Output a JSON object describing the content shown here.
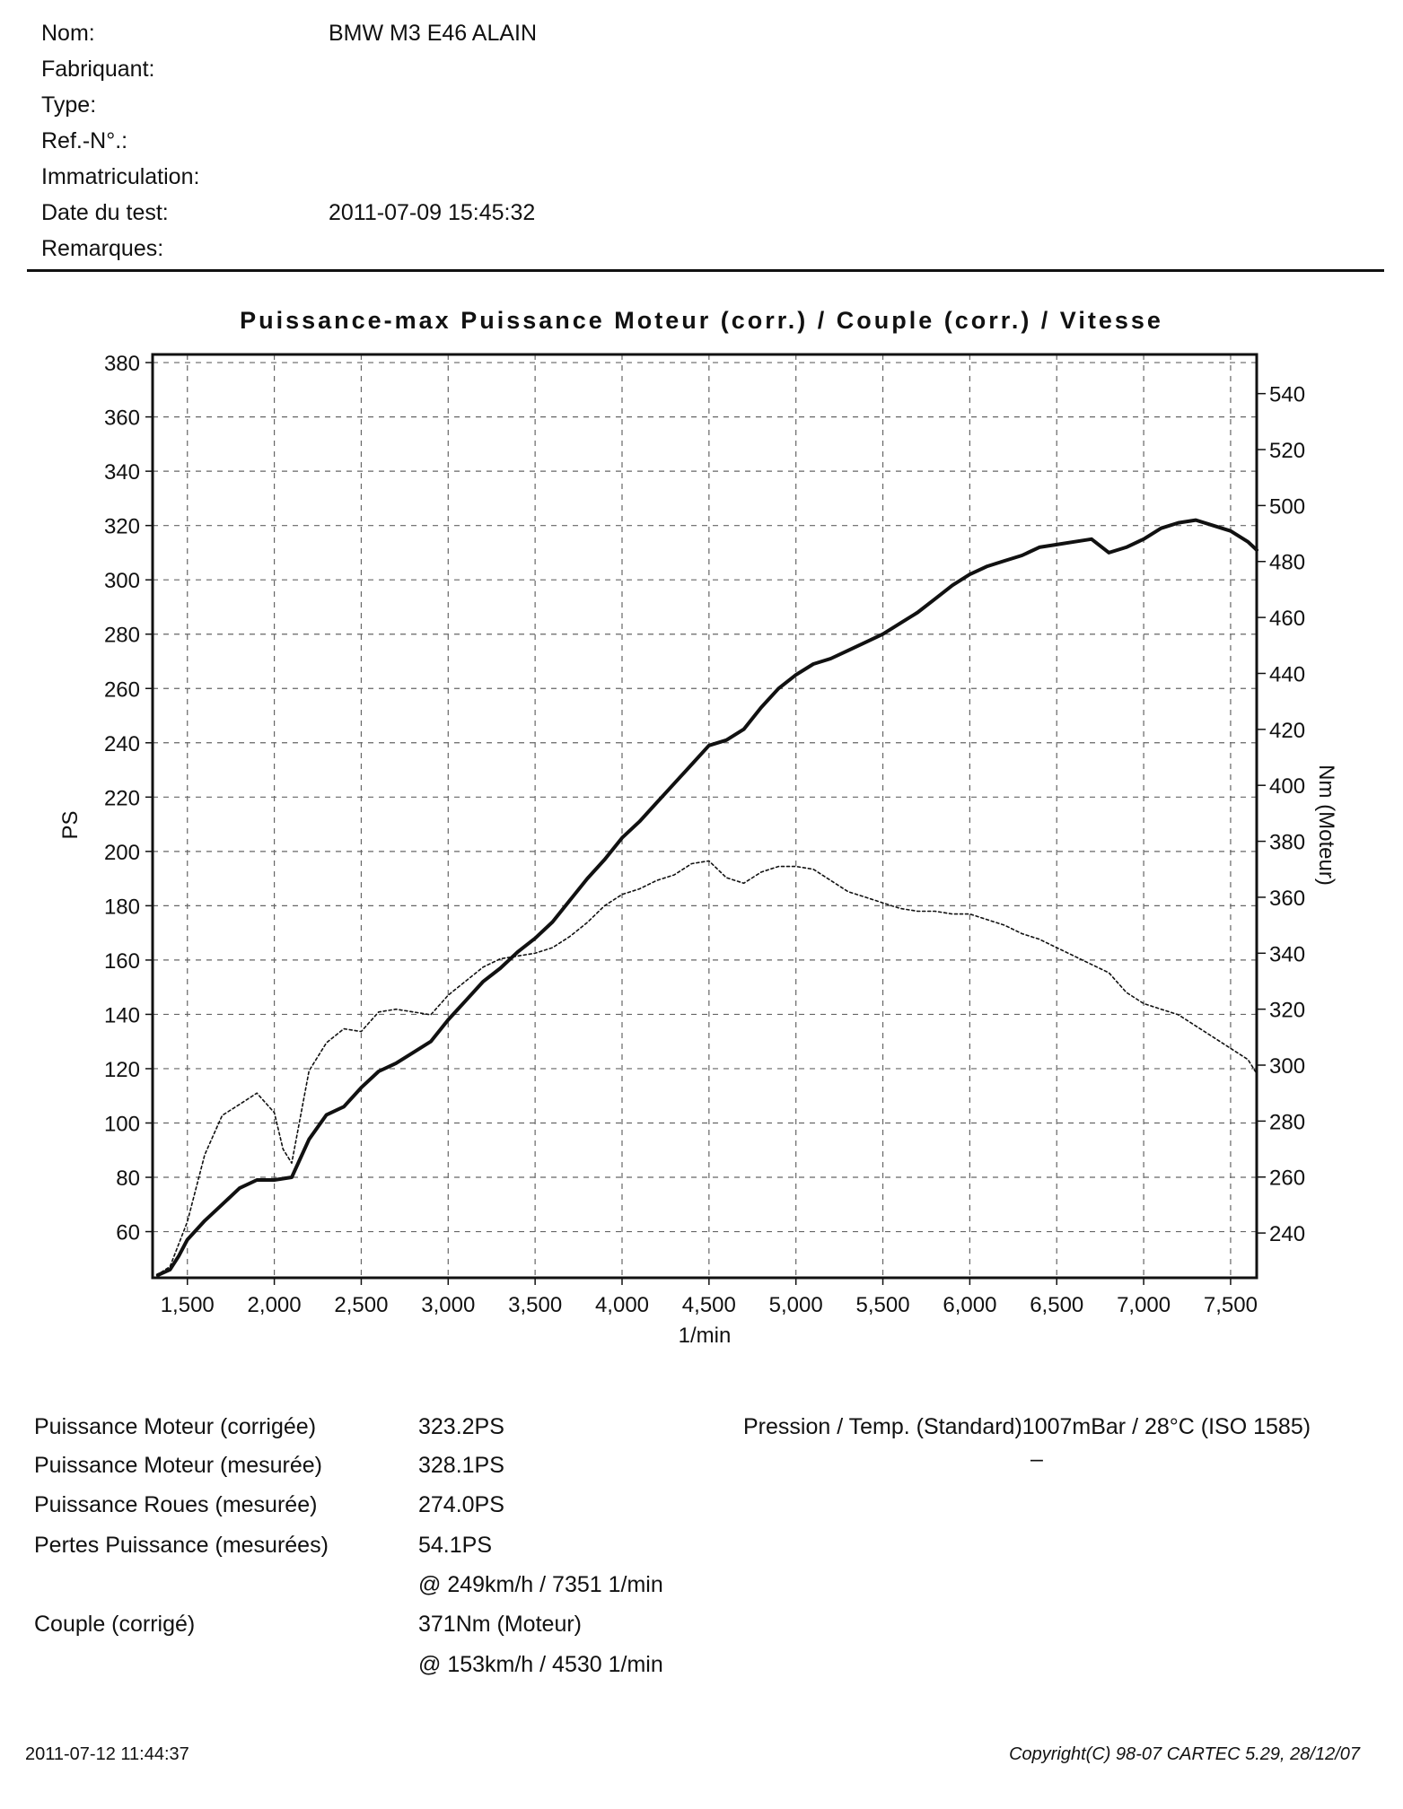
{
  "header": {
    "fields": [
      {
        "label": "Nom:",
        "value": "BMW M3 E46  ALAIN"
      },
      {
        "label": "Fabriquant:",
        "value": ""
      },
      {
        "label": "Type:",
        "value": ""
      },
      {
        "label": "Ref.-N°.:",
        "value": ""
      },
      {
        "label": "Immatriculation:",
        "value": ""
      },
      {
        "label": "Date du test:",
        "value": "2011-07-09 15:45:32"
      },
      {
        "label": "Remarques:",
        "value": ""
      }
    ]
  },
  "chart_data": {
    "type": "line",
    "title": "Puissance-max Puissance Moteur (corr.) / Couple (corr.) / Vitesse",
    "xlabel": "1/min",
    "ylabel_left": "PS",
    "ylabel_right": "Nm (Moteur)",
    "xlim": [
      1300,
      7650
    ],
    "ylim_left": [
      43,
      383
    ],
    "ylim_right": [
      224,
      554
    ],
    "x_ticks": [
      "1,500",
      "2,000",
      "2,500",
      "3,000",
      "3,500",
      "4,000",
      "4,500",
      "5,000",
      "5,500",
      "6,000",
      "6,500",
      "7,000",
      "7,500"
    ],
    "x_tick_values": [
      1500,
      2000,
      2500,
      3000,
      3500,
      4000,
      4500,
      5000,
      5500,
      6000,
      6500,
      7000,
      7500
    ],
    "y_left_ticks": [
      60,
      80,
      100,
      120,
      140,
      160,
      180,
      200,
      220,
      240,
      260,
      280,
      300,
      320,
      340,
      360,
      380
    ],
    "y_right_ticks": [
      240,
      260,
      280,
      300,
      320,
      340,
      360,
      380,
      400,
      420,
      440,
      460,
      480,
      500,
      520,
      540
    ],
    "grid": true,
    "series": [
      {
        "axis": "left",
        "style": "solid",
        "x": [
          1330,
          1400,
          1450,
          1500,
          1600,
          1700,
          1800,
          1900,
          2000,
          2100,
          2200,
          2300,
          2400,
          2500,
          2600,
          2700,
          2800,
          2900,
          3000,
          3100,
          3200,
          3300,
          3400,
          3500,
          3600,
          3700,
          3800,
          3900,
          4000,
          4100,
          4200,
          4300,
          4400,
          4500,
          4600,
          4700,
          4800,
          4900,
          5000,
          5100,
          5200,
          5300,
          5400,
          5500,
          5600,
          5700,
          5800,
          5900,
          6000,
          6100,
          6200,
          6300,
          6400,
          6500,
          6600,
          6700,
          6800,
          6900,
          7000,
          7100,
          7200,
          7300,
          7400,
          7500,
          7600,
          7650
        ],
        "values": [
          44,
          46,
          51,
          57,
          64,
          70,
          76,
          79,
          79,
          80,
          94,
          103,
          106,
          113,
          119,
          122,
          126,
          130,
          138,
          145,
          152,
          157,
          163,
          168,
          174,
          182,
          190,
          197,
          205,
          211,
          218,
          225,
          232,
          239,
          241,
          245,
          253,
          260,
          265,
          269,
          271,
          274,
          277,
          280,
          284,
          288,
          293,
          298,
          302,
          305,
          307,
          309,
          312,
          313,
          314,
          315,
          310,
          312,
          315,
          319,
          321,
          322,
          320,
          318,
          314,
          311
        ]
      },
      {
        "axis": "right",
        "style": "dotted",
        "x": [
          1350,
          1400,
          1500,
          1600,
          1700,
          1800,
          1900,
          2000,
          2050,
          2100,
          2200,
          2300,
          2400,
          2500,
          2600,
          2700,
          2800,
          2900,
          3000,
          3100,
          3200,
          3300,
          3400,
          3500,
          3600,
          3700,
          3800,
          3900,
          4000,
          4100,
          4200,
          4300,
          4400,
          4500,
          4600,
          4700,
          4800,
          4900,
          5000,
          5100,
          5200,
          5300,
          5400,
          5500,
          5600,
          5700,
          5800,
          5900,
          6000,
          6100,
          6200,
          6300,
          6400,
          6500,
          6600,
          6700,
          6800,
          6900,
          7000,
          7100,
          7200,
          7300,
          7400,
          7500,
          7600,
          7650
        ],
        "values": [
          226,
          228,
          244,
          268,
          282,
          286,
          290,
          283,
          270,
          265,
          298,
          308,
          313,
          312,
          319,
          320,
          319,
          318,
          325,
          330,
          335,
          338,
          339,
          340,
          342,
          346,
          351,
          357,
          361,
          363,
          366,
          368,
          372,
          373,
          367,
          365,
          369,
          371,
          371,
          370,
          366,
          362,
          360,
          358,
          356,
          355,
          355,
          354,
          354,
          352,
          350,
          347,
          345,
          342,
          339,
          336,
          333,
          326,
          322,
          320,
          318,
          314,
          310,
          306,
          302,
          297
        ]
      }
    ]
  },
  "results": {
    "rows": [
      {
        "label": "Puissance Moteur (corrigée)",
        "value": "323.2PS"
      },
      {
        "label": "Puissance Moteur (mesurée)",
        "value": "328.1PS"
      },
      {
        "label": "Puissance Roues (mesurée)",
        "value": "274.0PS"
      },
      {
        "label": "Pertes Puissance (mesurées)",
        "value": "54.1PS"
      },
      {
        "label": "",
        "value": "@ 249km/h / 7351 1/min"
      },
      {
        "label": "Couple (corrigé)",
        "value": "371Nm (Moteur)"
      },
      {
        "label": "",
        "value": "@ 153km/h / 4530 1/min"
      }
    ],
    "pressure": "Pression / Temp. (Standard)1007mBar / 28°C   (ISO 1585)",
    "pressure_dash": "–"
  },
  "footer": {
    "printed_at": "2011-07-12 11:44:37",
    "copyright": "Copyright(C) 98-07 CARTEC 5.29, 28/12/07"
  }
}
